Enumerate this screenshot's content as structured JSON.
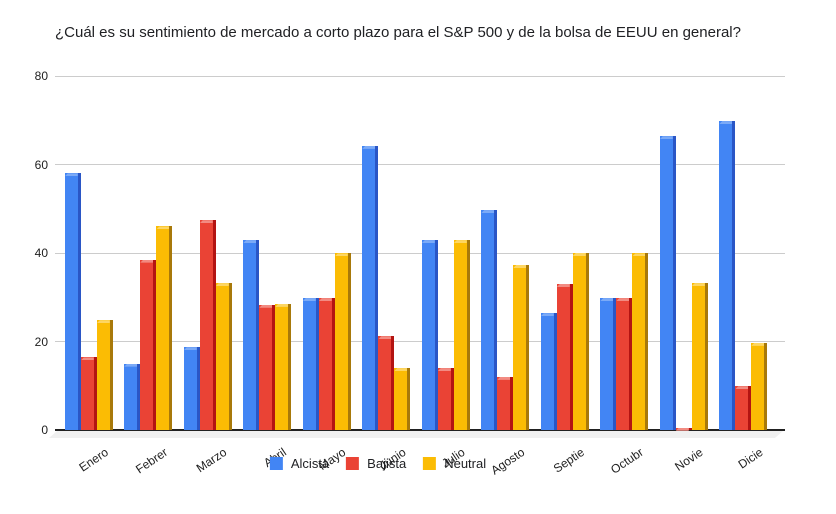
{
  "chart_data": {
    "type": "bar",
    "title": "¿Cuál es su sentimiento de mercado a corto plazo para el S&P 500 y de la bolsa de EEUU en general?",
    "xlabel": "",
    "ylabel": "",
    "categories": [
      "Enero",
      "Febrer",
      "Marzo",
      "Abril",
      "Mayo",
      "Junio",
      "Julio",
      "Agosto",
      "Septie",
      "Octubr",
      "Novie",
      "Dicie"
    ],
    "series": [
      {
        "name": "Alcista",
        "color": "#4285F4",
        "side_color": "#2A56C6",
        "top_color": "#7BAAF7",
        "values": [
          58,
          15,
          18.7,
          42.9,
          29.8,
          64.2,
          42.9,
          49.7,
          26.4,
          29.8,
          66.4,
          69.8
        ]
      },
      {
        "name": "Bajista",
        "color": "#EA4335",
        "side_color": "#B31412",
        "top_color": "#F28B82",
        "values": [
          16.4,
          38.5,
          47.4,
          28.3,
          29.8,
          21.2,
          14,
          12,
          33,
          29.8,
          0.5,
          9.9
        ]
      },
      {
        "name": "Neutral",
        "color": "#FBBC04",
        "side_color": "#A8790A",
        "top_color": "#FDD663",
        "values": [
          24.8,
          46,
          33.2,
          28.5,
          39.9,
          14,
          42.9,
          37.3,
          40,
          39.9,
          33.2,
          19.7
        ]
      }
    ],
    "ylim": [
      0,
      80
    ],
    "yticks": [
      0,
      20,
      40,
      60,
      80
    ],
    "grid": true,
    "legend_position": "bottom",
    "bar_style": "3d-column",
    "background_color": "#ffffff",
    "gridline_color": "#cccccc",
    "baseline_color": "#212121",
    "floor_color": "#f0f0f0",
    "text_color": "#202124"
  }
}
